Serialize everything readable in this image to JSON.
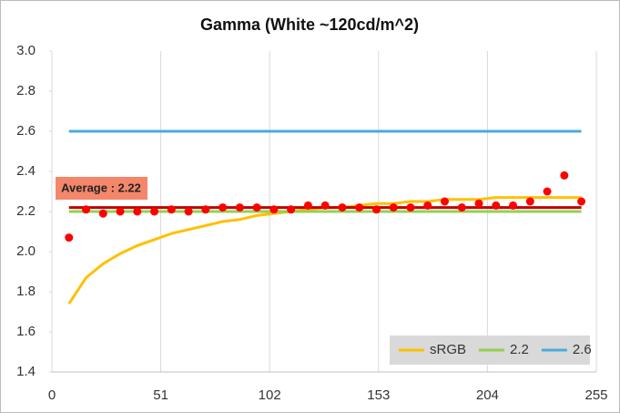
{
  "chart_data": {
    "type": "line",
    "title": "Gamma (White ~120cd/m^2)",
    "x": [
      8,
      16,
      24,
      32,
      40,
      48,
      56,
      64,
      72,
      80,
      88,
      96,
      104,
      112,
      120,
      128,
      136,
      144,
      152,
      160,
      168,
      176,
      184,
      192,
      200,
      208,
      216,
      224,
      232,
      240,
      248
    ],
    "series": [
      {
        "name": "sRGB",
        "color": "#ffc000",
        "values": [
          1.74,
          1.87,
          1.94,
          1.99,
          2.03,
          2.06,
          2.09,
          2.11,
          2.13,
          2.15,
          2.16,
          2.18,
          2.19,
          2.2,
          2.21,
          2.22,
          2.22,
          2.23,
          2.24,
          2.24,
          2.25,
          2.25,
          2.26,
          2.26,
          2.26,
          2.27,
          2.27,
          2.27,
          2.27,
          2.27,
          2.27
        ]
      },
      {
        "name": "2.2",
        "color": "#92d050",
        "values": [
          2.2,
          2.2,
          2.2,
          2.2,
          2.2,
          2.2,
          2.2,
          2.2,
          2.2,
          2.2,
          2.2,
          2.2,
          2.2,
          2.2,
          2.2,
          2.2,
          2.2,
          2.2,
          2.2,
          2.2,
          2.2,
          2.2,
          2.2,
          2.2,
          2.2,
          2.2,
          2.2,
          2.2,
          2.2,
          2.2,
          2.2
        ]
      },
      {
        "name": "2.6",
        "color": "#4aacd9",
        "values": [
          2.6,
          2.6,
          2.6,
          2.6,
          2.6,
          2.6,
          2.6,
          2.6,
          2.6,
          2.6,
          2.6,
          2.6,
          2.6,
          2.6,
          2.6,
          2.6,
          2.6,
          2.6,
          2.6,
          2.6,
          2.6,
          2.6,
          2.6,
          2.6,
          2.6,
          2.6,
          2.6,
          2.6,
          2.6,
          2.6,
          2.6
        ]
      }
    ],
    "points": {
      "color": "#ff0000",
      "values": [
        2.07,
        2.21,
        2.19,
        2.2,
        2.2,
        2.2,
        2.21,
        2.2,
        2.21,
        2.22,
        2.22,
        2.22,
        2.21,
        2.21,
        2.23,
        2.23,
        2.22,
        2.22,
        2.21,
        2.22,
        2.22,
        2.23,
        2.25,
        2.22,
        2.24,
        2.23,
        2.23,
        2.25,
        2.3,
        2.38,
        2.25
      ]
    },
    "average": {
      "label": "Average : 2.22",
      "value": 2.22,
      "color": "#c00000"
    },
    "xlim": [
      0,
      255
    ],
    "xticks": [
      0,
      51,
      102,
      153,
      204,
      255
    ],
    "ylim": [
      1.4,
      3.0
    ],
    "yticks": [
      {
        "value": 1.4,
        "label": "1.4"
      },
      {
        "value": 1.6,
        "label": "1.6"
      },
      {
        "value": 1.8,
        "label": "1.8"
      },
      {
        "value": 2.0,
        "label": "2.0"
      },
      {
        "value": 2.2,
        "label": "2.2"
      },
      {
        "value": 2.4,
        "label": "2.4"
      },
      {
        "value": 2.6,
        "label": "2.6"
      },
      {
        "value": 2.8,
        "label": "2.8"
      },
      {
        "value": 3.0,
        "label": "3.0"
      }
    ],
    "grid": true,
    "legend": "bottom-right"
  }
}
